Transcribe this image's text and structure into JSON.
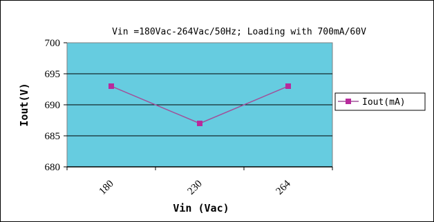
{
  "chart_data": {
    "type": "line",
    "title": "Vin =180Vac-264Vac/50Hz; Loading with  700mA/60V",
    "xlabel": "Vin (Vac)",
    "ylabel": "Iout(V)",
    "categories": [
      "180",
      "230",
      "264"
    ],
    "series": [
      {
        "name": "Iout(mA)",
        "values": [
          693,
          687,
          693
        ]
      }
    ],
    "ylim": [
      680,
      700
    ],
    "yticks": [
      "680",
      "685",
      "690",
      "695",
      "700"
    ],
    "grid": true,
    "legend": "right",
    "colors": {
      "plot_background": "#66cce0",
      "series_line": "#a0529a",
      "series_marker": "#b82a9c",
      "gridline": "#000000"
    }
  }
}
